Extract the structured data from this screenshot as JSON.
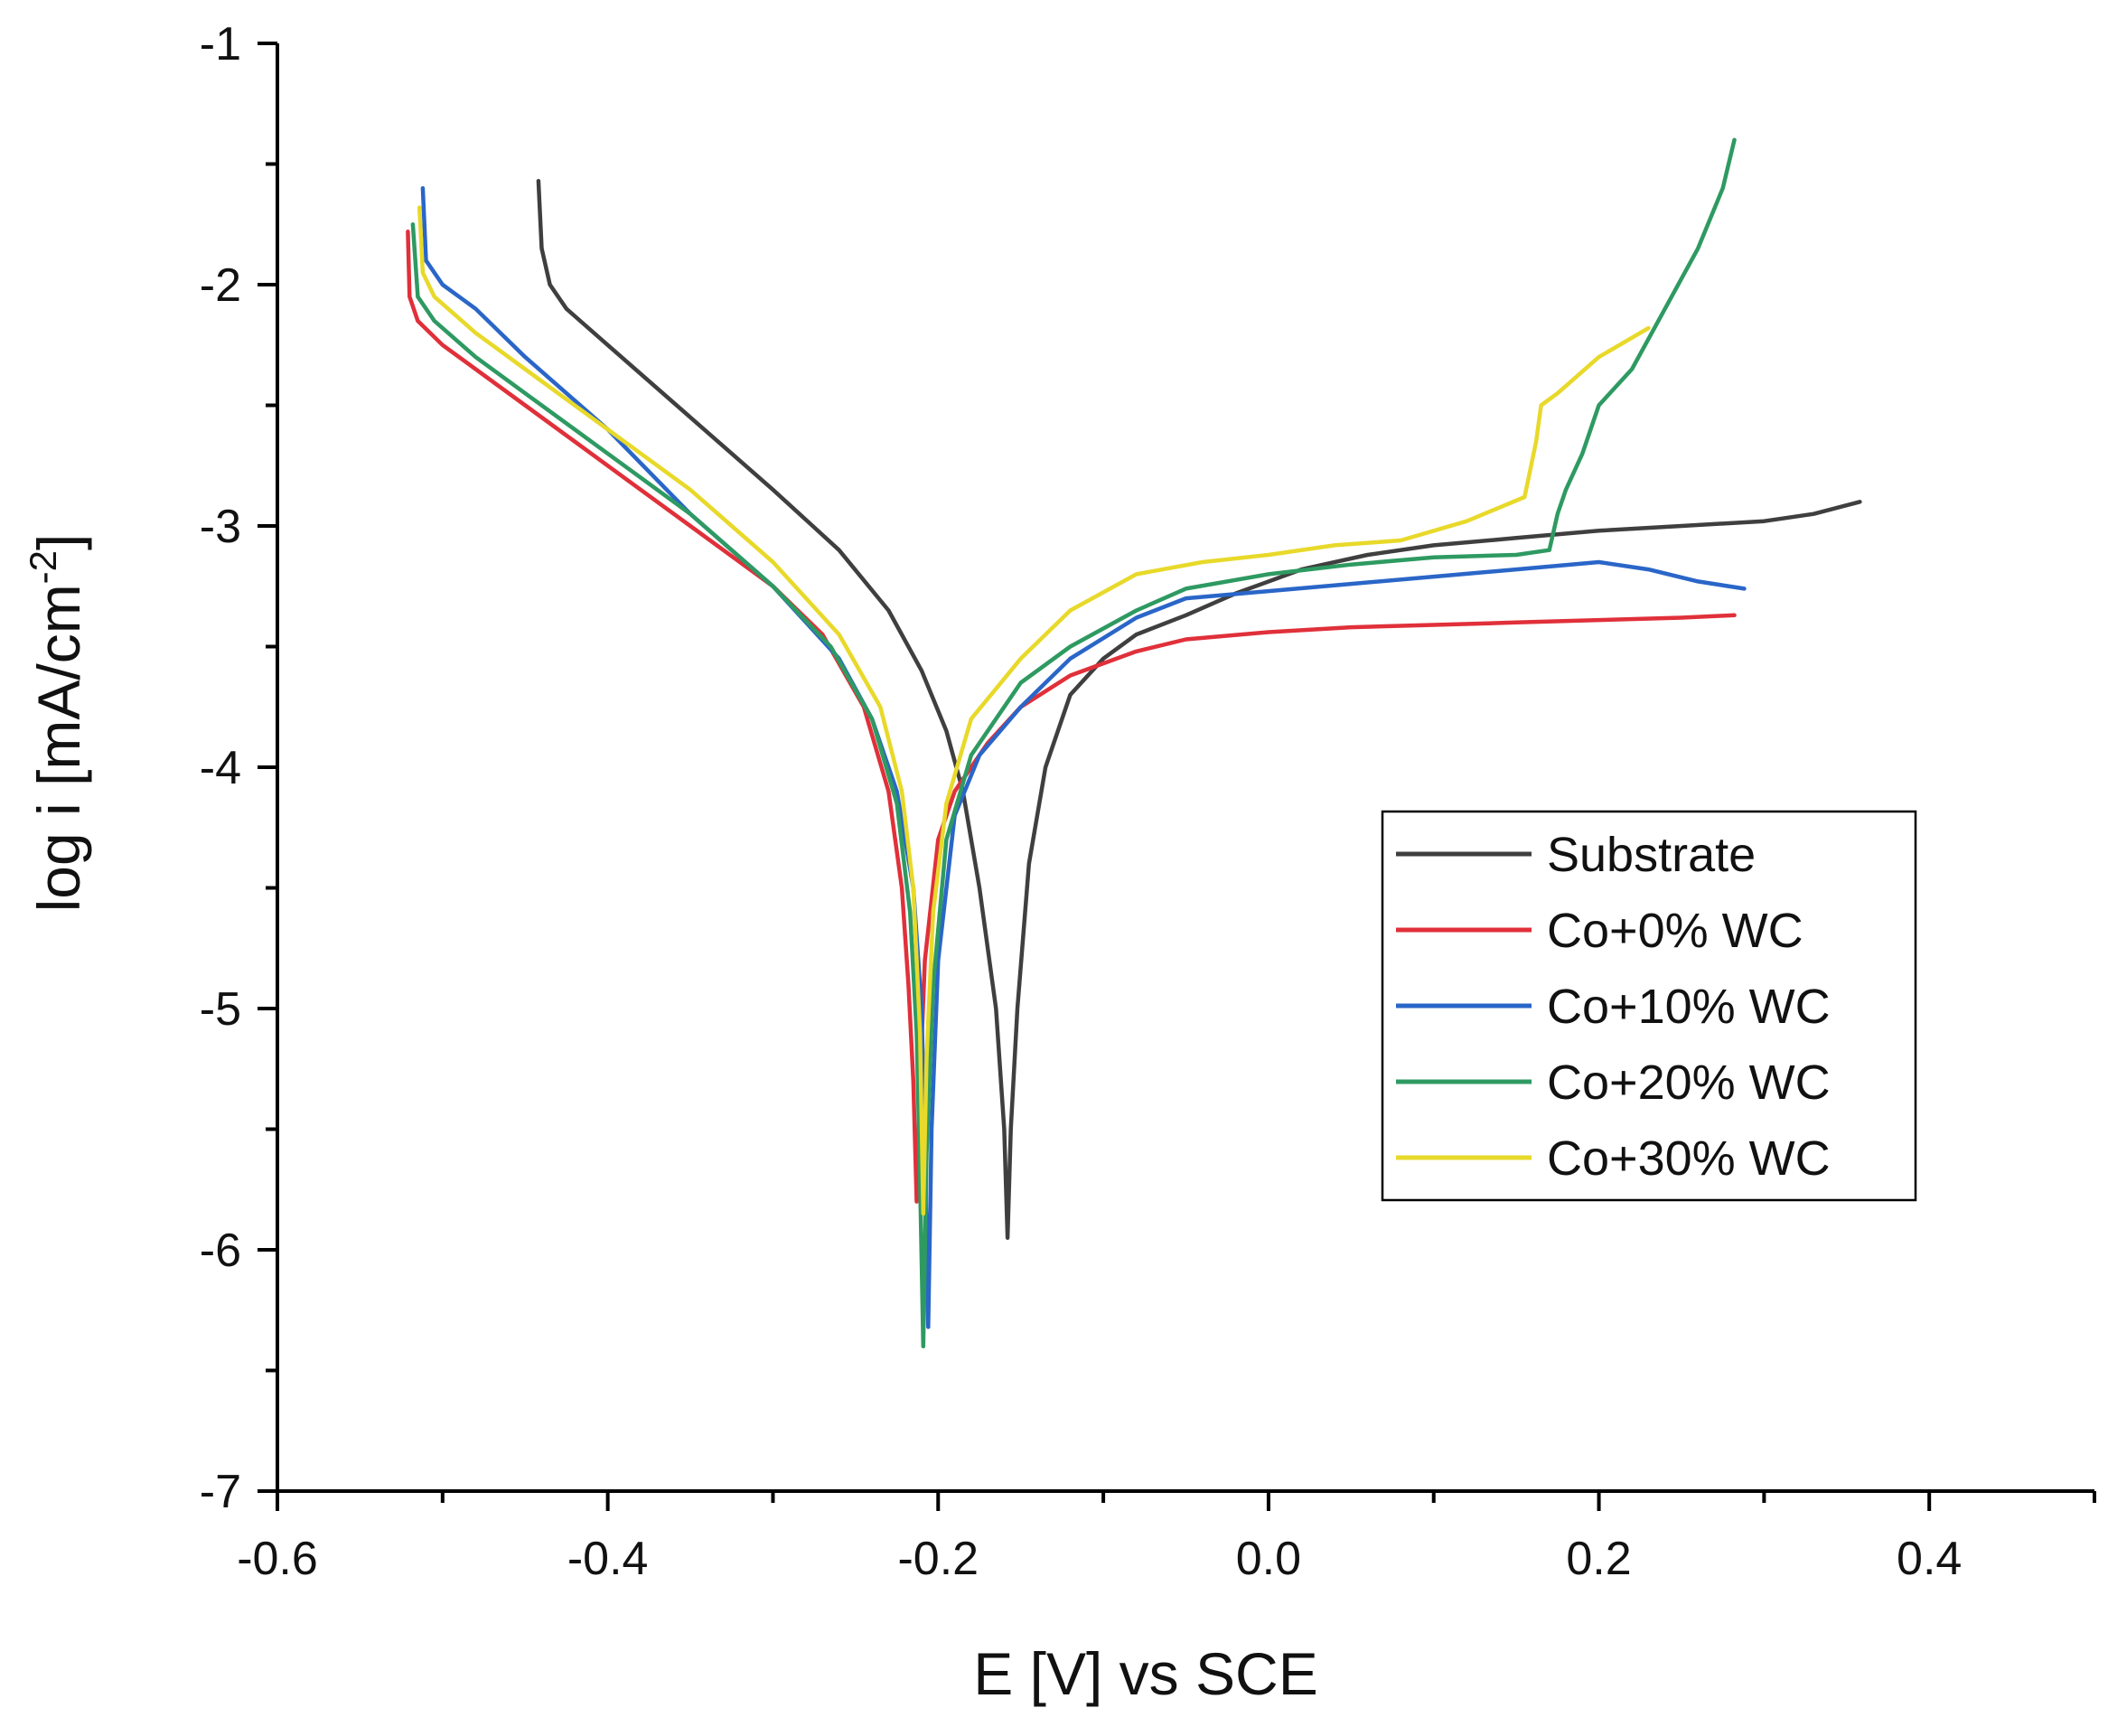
{
  "chart_data": {
    "type": "line",
    "title": "",
    "xlabel": "E [V] vs SCE",
    "ylabel": "log i [mA/cm",
    "ylabel_superscript": "-2",
    "ylabel_suffix": "]",
    "xlim": [
      -0.6,
      0.5
    ],
    "ylim": [
      -7,
      -1
    ],
    "xticks": [
      -0.6,
      -0.4,
      -0.2,
      0.0,
      0.2,
      0.4
    ],
    "xtick_labels": [
      "-0.6",
      "-0.4",
      "-0.2",
      "0.0",
      "0.2",
      "0.4"
    ],
    "yticks": [
      -7,
      -6,
      -5,
      -4,
      -3,
      -2,
      -1
    ],
    "ytick_labels": [
      "-7",
      "-6",
      "-5",
      "-4",
      "-3",
      "-2",
      "-1"
    ],
    "grid": false,
    "legend_position": "center-right",
    "series": [
      {
        "name": "Substrate",
        "color": "#3f3f3f",
        "points": [
          [
            -0.442,
            -1.57
          ],
          [
            -0.44,
            -1.85
          ],
          [
            -0.435,
            -2.0
          ],
          [
            -0.425,
            -2.1
          ],
          [
            -0.4,
            -2.25
          ],
          [
            -0.35,
            -2.55
          ],
          [
            -0.3,
            -2.85
          ],
          [
            -0.26,
            -3.1
          ],
          [
            -0.23,
            -3.35
          ],
          [
            -0.21,
            -3.6
          ],
          [
            -0.195,
            -3.85
          ],
          [
            -0.185,
            -4.1
          ],
          [
            -0.175,
            -4.5
          ],
          [
            -0.165,
            -5.0
          ],
          [
            -0.16,
            -5.5
          ],
          [
            -0.158,
            -5.95
          ],
          [
            -0.156,
            -5.5
          ],
          [
            -0.152,
            -5.0
          ],
          [
            -0.145,
            -4.4
          ],
          [
            -0.135,
            -4.0
          ],
          [
            -0.12,
            -3.7
          ],
          [
            -0.1,
            -3.55
          ],
          [
            -0.08,
            -3.45
          ],
          [
            -0.05,
            -3.37
          ],
          [
            -0.02,
            -3.28
          ],
          [
            0.02,
            -3.18
          ],
          [
            0.06,
            -3.12
          ],
          [
            0.1,
            -3.08
          ],
          [
            0.15,
            -3.05
          ],
          [
            0.2,
            -3.02
          ],
          [
            0.25,
            -3.0
          ],
          [
            0.3,
            -2.98
          ],
          [
            0.33,
            -2.95
          ],
          [
            0.358,
            -2.9
          ]
        ]
      },
      {
        "name": "Co+0% WC",
        "color": "#e0303a",
        "points": [
          [
            -0.521,
            -1.78
          ],
          [
            -0.52,
            -2.05
          ],
          [
            -0.515,
            -2.15
          ],
          [
            -0.5,
            -2.25
          ],
          [
            -0.45,
            -2.5
          ],
          [
            -0.4,
            -2.75
          ],
          [
            -0.35,
            -3.0
          ],
          [
            -0.3,
            -3.25
          ],
          [
            -0.27,
            -3.45
          ],
          [
            -0.245,
            -3.75
          ],
          [
            -0.23,
            -4.1
          ],
          [
            -0.222,
            -4.5
          ],
          [
            -0.218,
            -4.9
          ],
          [
            -0.215,
            -5.3
          ],
          [
            -0.213,
            -5.8
          ],
          [
            -0.211,
            -5.3
          ],
          [
            -0.208,
            -4.8
          ],
          [
            -0.2,
            -4.3
          ],
          [
            -0.19,
            -4.1
          ],
          [
            -0.17,
            -3.9
          ],
          [
            -0.15,
            -3.75
          ],
          [
            -0.12,
            -3.62
          ],
          [
            -0.08,
            -3.52
          ],
          [
            -0.05,
            -3.47
          ],
          [
            0.0,
            -3.44
          ],
          [
            0.05,
            -3.42
          ],
          [
            0.1,
            -3.41
          ],
          [
            0.15,
            -3.4
          ],
          [
            0.2,
            -3.39
          ],
          [
            0.25,
            -3.38
          ],
          [
            0.282,
            -3.37
          ]
        ]
      },
      {
        "name": "Co+10% WC",
        "color": "#2a66c8",
        "points": [
          [
            -0.512,
            -1.6
          ],
          [
            -0.51,
            -1.9
          ],
          [
            -0.5,
            -2.0
          ],
          [
            -0.48,
            -2.1
          ],
          [
            -0.45,
            -2.3
          ],
          [
            -0.4,
            -2.6
          ],
          [
            -0.35,
            -2.95
          ],
          [
            -0.3,
            -3.25
          ],
          [
            -0.26,
            -3.55
          ],
          [
            -0.24,
            -3.8
          ],
          [
            -0.225,
            -4.1
          ],
          [
            -0.215,
            -4.5
          ],
          [
            -0.21,
            -5.0
          ],
          [
            -0.208,
            -5.6
          ],
          [
            -0.206,
            -6.32
          ],
          [
            -0.204,
            -5.5
          ],
          [
            -0.2,
            -4.8
          ],
          [
            -0.19,
            -4.2
          ],
          [
            -0.175,
            -3.95
          ],
          [
            -0.15,
            -3.75
          ],
          [
            -0.12,
            -3.55
          ],
          [
            -0.08,
            -3.38
          ],
          [
            -0.05,
            -3.3
          ],
          [
            0.0,
            -3.27
          ],
          [
            0.05,
            -3.24
          ],
          [
            0.1,
            -3.21
          ],
          [
            0.15,
            -3.18
          ],
          [
            0.2,
            -3.15
          ],
          [
            0.23,
            -3.18
          ],
          [
            0.26,
            -3.23
          ],
          [
            0.288,
            -3.26
          ]
        ]
      },
      {
        "name": "Co+20% WC",
        "color": "#2e9a62",
        "points": [
          [
            -0.518,
            -1.75
          ],
          [
            -0.515,
            -2.05
          ],
          [
            -0.505,
            -2.15
          ],
          [
            -0.48,
            -2.3
          ],
          [
            -0.45,
            -2.45
          ],
          [
            -0.4,
            -2.7
          ],
          [
            -0.35,
            -2.95
          ],
          [
            -0.3,
            -3.25
          ],
          [
            -0.265,
            -3.5
          ],
          [
            -0.24,
            -3.8
          ],
          [
            -0.225,
            -4.15
          ],
          [
            -0.217,
            -4.6
          ],
          [
            -0.213,
            -5.1
          ],
          [
            -0.211,
            -5.7
          ],
          [
            -0.209,
            -6.4
          ],
          [
            -0.207,
            -5.6
          ],
          [
            -0.203,
            -4.9
          ],
          [
            -0.195,
            -4.3
          ],
          [
            -0.18,
            -3.95
          ],
          [
            -0.15,
            -3.65
          ],
          [
            -0.12,
            -3.5
          ],
          [
            -0.08,
            -3.35
          ],
          [
            -0.05,
            -3.26
          ],
          [
            0.0,
            -3.2
          ],
          [
            0.05,
            -3.16
          ],
          [
            0.1,
            -3.13
          ],
          [
            0.15,
            -3.12
          ],
          [
            0.17,
            -3.1
          ],
          [
            0.175,
            -2.95
          ],
          [
            0.18,
            -2.85
          ],
          [
            0.19,
            -2.7
          ],
          [
            0.2,
            -2.5
          ],
          [
            0.22,
            -2.35
          ],
          [
            0.24,
            -2.1
          ],
          [
            0.26,
            -1.85
          ],
          [
            0.275,
            -1.6
          ],
          [
            0.282,
            -1.4
          ]
        ]
      },
      {
        "name": "Co+30% WC",
        "color": "#e8d92a",
        "points": [
          [
            -0.514,
            -1.68
          ],
          [
            -0.512,
            -1.95
          ],
          [
            -0.505,
            -2.05
          ],
          [
            -0.48,
            -2.2
          ],
          [
            -0.45,
            -2.35
          ],
          [
            -0.4,
            -2.6
          ],
          [
            -0.35,
            -2.85
          ],
          [
            -0.3,
            -3.15
          ],
          [
            -0.26,
            -3.45
          ],
          [
            -0.235,
            -3.75
          ],
          [
            -0.222,
            -4.1
          ],
          [
            -0.215,
            -4.5
          ],
          [
            -0.211,
            -5.1
          ],
          [
            -0.209,
            -5.85
          ],
          [
            -0.207,
            -5.2
          ],
          [
            -0.203,
            -4.6
          ],
          [
            -0.195,
            -4.15
          ],
          [
            -0.18,
            -3.8
          ],
          [
            -0.15,
            -3.55
          ],
          [
            -0.12,
            -3.35
          ],
          [
            -0.08,
            -3.2
          ],
          [
            -0.04,
            -3.15
          ],
          [
            0.0,
            -3.12
          ],
          [
            0.04,
            -3.08
          ],
          [
            0.08,
            -3.06
          ],
          [
            0.12,
            -2.98
          ],
          [
            0.155,
            -2.88
          ],
          [
            0.162,
            -2.65
          ],
          [
            0.165,
            -2.5
          ],
          [
            0.175,
            -2.45
          ],
          [
            0.2,
            -2.3
          ],
          [
            0.23,
            -2.18
          ]
        ]
      }
    ]
  }
}
